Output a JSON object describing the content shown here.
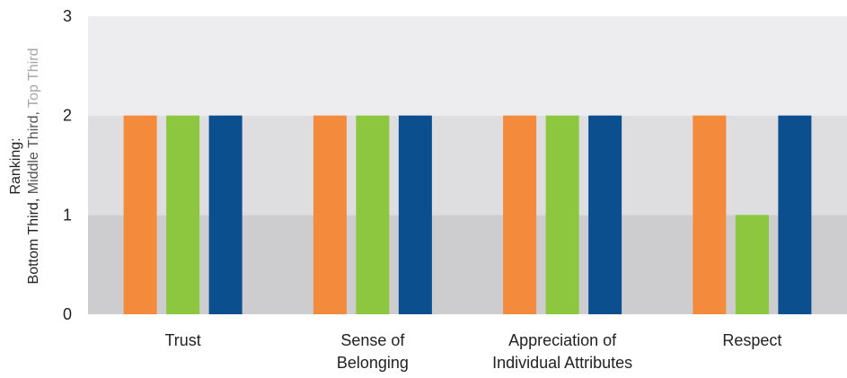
{
  "chart_data": {
    "type": "bar",
    "categories": [
      [
        "Trust"
      ],
      [
        "Sense of",
        "Belonging"
      ],
      [
        "Appreciation of",
        "Individual Attributes"
      ],
      [
        "Respect"
      ]
    ],
    "series": [
      {
        "color": "#f38a3c",
        "values": [
          2,
          2,
          2,
          2
        ]
      },
      {
        "color": "#8dc63f",
        "values": [
          2,
          2,
          2,
          1
        ]
      },
      {
        "color": "#0b4f8e",
        "values": [
          2,
          2,
          2,
          2
        ]
      }
    ],
    "ylim": [
      0,
      3
    ],
    "yticks": [
      "0",
      "1",
      "2",
      "3"
    ],
    "ylabel": {
      "line1": "Ranking:",
      "part_bottom": "Bottom Third,",
      "part_middle": " Middle Third,",
      "part_top": " Top Third"
    },
    "bands": [
      {
        "from": 0,
        "to": 1,
        "color": "#cdcdcf"
      },
      {
        "from": 1,
        "to": 2,
        "color": "#dedee0"
      },
      {
        "from": 2,
        "to": 3,
        "color": "#ededef"
      }
    ],
    "ylabel_colors": {
      "dark": "#222222",
      "mid": "#555555",
      "light": "#a6a6a6"
    },
    "grid": false,
    "legend": "none"
  }
}
